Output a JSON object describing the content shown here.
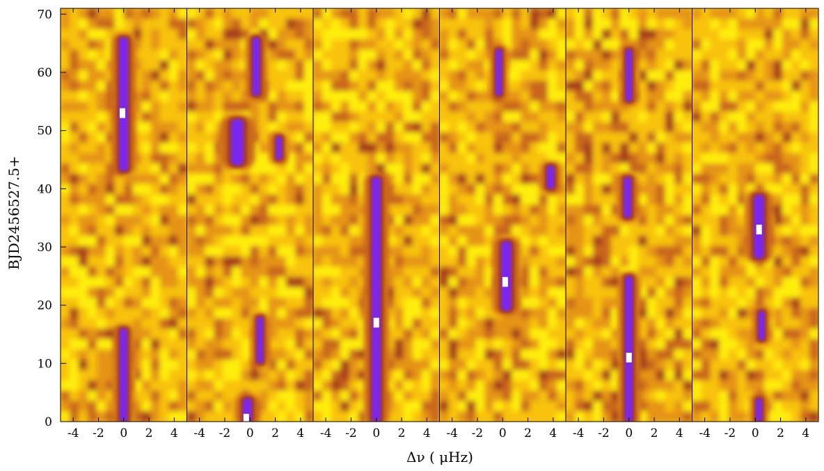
{
  "chart_data": {
    "type": "heatmap",
    "xlabel": "Δν ( μHz)",
    "ylabel": "BJD2456527.5+",
    "colormap": [
      "#ffee10",
      "#f8c20c",
      "#e59412",
      "#c9661b",
      "#a73c1f",
      "#9b39b5",
      "#7a28f0",
      "#ffffff"
    ],
    "x_ticks": [
      -4,
      -2,
      0,
      2,
      4
    ],
    "x_tick_labels": [
      "-4",
      "-2",
      "0",
      "2",
      "4"
    ],
    "xlim": [
      -5,
      5
    ],
    "y_ticks": [
      0,
      10,
      20,
      30,
      40,
      50,
      60,
      70
    ],
    "y_tick_labels": [
      "0",
      "10",
      "20",
      "30",
      "40",
      "50",
      "60",
      "70"
    ],
    "ylim": [
      0,
      71
    ],
    "grid": false,
    "panels": [
      {
        "center": 0.0,
        "peak": {
          "x": -0.1,
          "y": 53
        },
        "ridge": [
          {
            "y0": 43,
            "y1": 66,
            "x": 0.0,
            "w": 0.7
          },
          {
            "y0": 0,
            "y1": 16,
            "x": 0.0,
            "w": 0.6
          }
        ]
      },
      {
        "center": 0.0,
        "peak": {
          "x": -0.3,
          "y": 0.5
        },
        "ridge": [
          {
            "y0": 56,
            "y1": 66,
            "x": 0.5,
            "w": 0.6
          },
          {
            "y0": 44,
            "y1": 52,
            "x": -1.0,
            "w": 1.0
          },
          {
            "y0": 45,
            "y1": 49,
            "x": 2.3,
            "w": 0.5
          },
          {
            "y0": 10,
            "y1": 18,
            "x": 0.8,
            "w": 0.5
          },
          {
            "y0": 0,
            "y1": 4,
            "x": -0.2,
            "w": 0.7
          }
        ]
      },
      {
        "center": 0.0,
        "peak": {
          "x": 0.0,
          "y": 17
        },
        "ridge": [
          {
            "y0": 0,
            "y1": 42,
            "x": 0.0,
            "w": 0.7
          }
        ]
      },
      {
        "center": 0.0,
        "peak": {
          "x": 0.2,
          "y": 24
        },
        "ridge": [
          {
            "y0": 56,
            "y1": 64,
            "x": -0.3,
            "w": 0.5
          },
          {
            "y0": 19,
            "y1": 31,
            "x": 0.3,
            "w": 0.8
          },
          {
            "y0": 40,
            "y1": 44,
            "x": 3.8,
            "w": 0.6
          }
        ]
      },
      {
        "center": 0.0,
        "peak": {
          "x": 0.0,
          "y": 11
        },
        "ridge": [
          {
            "y0": 55,
            "y1": 64,
            "x": 0.0,
            "w": 0.5
          },
          {
            "y0": 35,
            "y1": 42,
            "x": -0.1,
            "w": 0.6
          },
          {
            "y0": 0,
            "y1": 25,
            "x": 0.0,
            "w": 0.6
          }
        ]
      },
      {
        "center": 0.0,
        "peak": {
          "x": 0.3,
          "y": 33
        },
        "ridge": [
          {
            "y0": 28,
            "y1": 39,
            "x": 0.3,
            "w": 0.8
          },
          {
            "y0": 14,
            "y1": 19,
            "x": 0.5,
            "w": 0.5
          },
          {
            "y0": 0,
            "y1": 4,
            "x": 0.3,
            "w": 0.5
          }
        ]
      }
    ]
  }
}
